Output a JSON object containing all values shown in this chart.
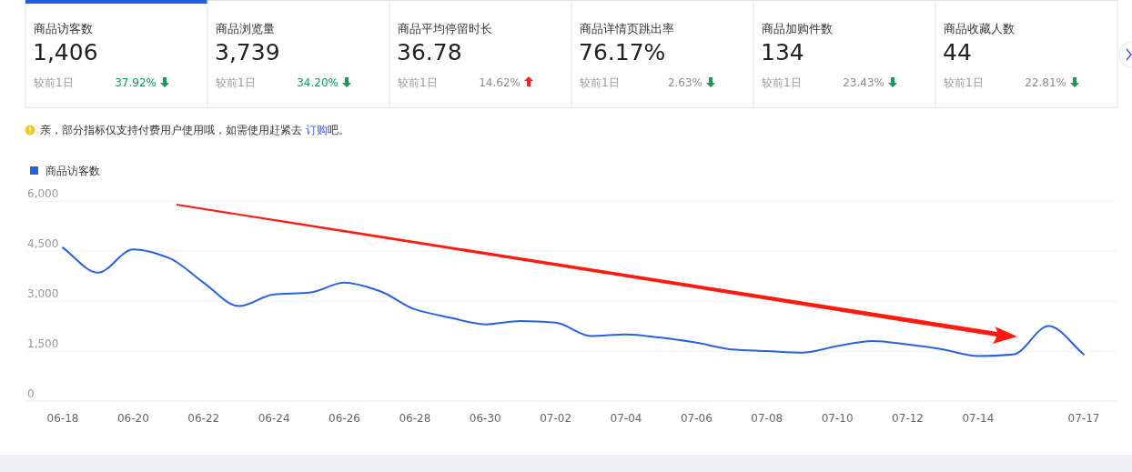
{
  "chart_data": [
    {
      "type": "other",
      "categories": [
        "商品访客数",
        "商品浏览量",
        "商品平均停留时长",
        "商品详情页跳出率",
        "商品加购件数",
        "商品收藏人数"
      ],
      "series": [
        {
          "values": [
            1406,
            3739,
            36.78,
            76.17,
            134,
            44
          ],
          "value_labels": [
            "1,406",
            "3,739",
            "36.78",
            "76.17%",
            "134",
            "44"
          ]
        },
        {
          "name": "较前1日",
          "values": [
            37.92,
            34.2,
            14.62,
            2.63,
            23.43,
            22.81
          ],
          "marker": [
            "down",
            "down",
            "up",
            "down",
            "down",
            "down"
          ],
          "value_labels": [
            "37.92%",
            "34.20%",
            "14.62%",
            "2.63%",
            "23.43%",
            "22.81%"
          ],
          "colors": [
            "#0f9d58",
            "#0f9d58",
            "#8c8c8c",
            "#8c8c8c",
            "#8c8c8c",
            "#8c8c8c"
          ]
        }
      ],
      "annotations": [
        "亲，部分指标仅支持付费用户使用哦，如需使用赶紧去 ",
        "订购",
        "吧。"
      ]
    },
    {
      "type": "line",
      "categories": [
        "06-18",
        null,
        "06-20",
        null,
        "06-22",
        null,
        "06-24",
        null,
        "06-26",
        null,
        "06-28",
        null,
        "06-30",
        null,
        "07-02",
        null,
        "07-04",
        null,
        "07-06",
        null,
        "07-08",
        null,
        "07-10",
        null,
        "07-12",
        null,
        "07-14",
        null,
        null,
        "07-17"
      ],
      "series": [
        {
          "name": "商品访客数",
          "color": "#2563e0",
          "values": [
            4600,
            3850,
            4550,
            4300,
            3550,
            2850,
            3200,
            3250,
            3550,
            3300,
            2750,
            2500,
            2300,
            2400,
            2350,
            1950,
            2000,
            1900,
            1750,
            1550,
            1500,
            1450,
            1650,
            1800,
            1700,
            1550,
            1350,
            1400,
            2250,
            1400
          ]
        }
      ],
      "ylim": [
        0,
        6000
      ],
      "yticks": [
        0,
        {
          "value": 1500,
          "label": "1,500"
        },
        {
          "value": 3000,
          "label": "3,000"
        },
        {
          "value": 4500,
          "label": "4,500"
        },
        {
          "value": 6000,
          "label": "6,000"
        }
      ],
      "grid": "y",
      "legend": "top left",
      "marker": "none",
      "line_style": "solid"
    }
  ]
}
